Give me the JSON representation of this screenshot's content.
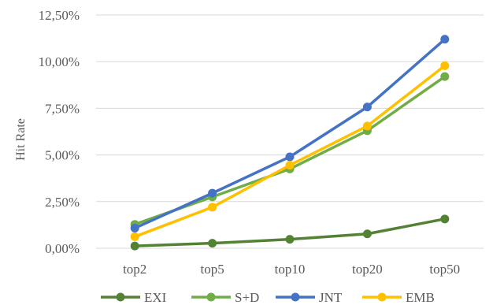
{
  "chart_data": {
    "type": "line",
    "title": "",
    "xlabel": "",
    "ylabel": "Hit Rate",
    "categories": [
      "top2",
      "top5",
      "top10",
      "top20",
      "top50"
    ],
    "ylim": [
      0,
      0.125
    ],
    "yticks": [
      0,
      0.025,
      0.05,
      0.075,
      0.1,
      0.125
    ],
    "ytick_labels": [
      "0,00%",
      "2,50%",
      "5,00%",
      "7,50%",
      "10,00%",
      "12,50%"
    ],
    "grid": true,
    "legend_position": "bottom",
    "series": [
      {
        "name": "EXI",
        "color": "#548235",
        "values": [
          0.0012,
          0.0027,
          0.0048,
          0.0077,
          0.0157
        ]
      },
      {
        "name": "S+D",
        "color": "#70ad47",
        "values": [
          0.0128,
          0.0275,
          0.0425,
          0.063,
          0.092
        ]
      },
      {
        "name": "JNT",
        "color": "#4472c4",
        "values": [
          0.0108,
          0.0295,
          0.049,
          0.0757,
          0.112
        ]
      },
      {
        "name": "EMB",
        "color": "#ffc000",
        "values": [
          0.0062,
          0.022,
          0.0445,
          0.0655,
          0.0978
        ]
      }
    ]
  }
}
